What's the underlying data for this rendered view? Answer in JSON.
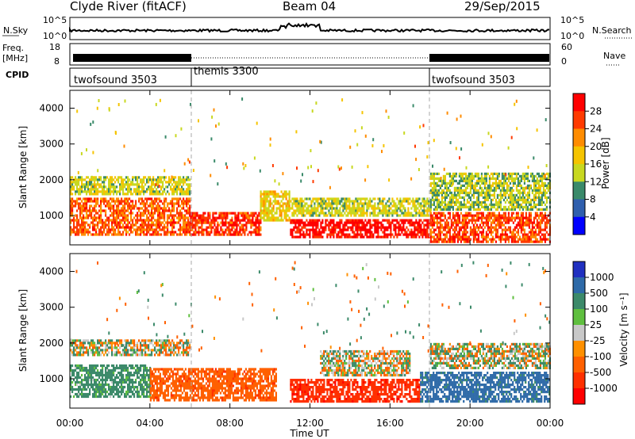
{
  "header": {
    "station": "Clyde River (fitACF)",
    "beam": "Beam 04",
    "date": "29/Sep/2015"
  },
  "noise_panel": {
    "left_label": "N.Sky",
    "right_label": "N.Search",
    "left_ticks": [
      "10^5",
      "10^0"
    ],
    "right_ticks": [
      "10^5",
      "10^0"
    ]
  },
  "freq_panel": {
    "left_label_1": "Freq.",
    "left_label_2": "[MHz]",
    "right_label": "Nave",
    "left_ticks": [
      "18",
      "8"
    ],
    "right_ticks": [
      "60",
      "0"
    ]
  },
  "cpid_panel": {
    "label": "CPID",
    "segments": [
      {
        "name": "twofsound 3503",
        "start_hour": 0,
        "end_hour": 6
      },
      {
        "name": "themis 3300",
        "start_hour": 6,
        "end_hour": 18
      },
      {
        "name": "twofsound 3503",
        "start_hour": 18,
        "end_hour": 24
      }
    ]
  },
  "x_axis": {
    "label": "Time UT",
    "ticks": [
      "00:00",
      "04:00",
      "08:00",
      "12:00",
      "16:00",
      "20:00",
      "00:00"
    ],
    "range_hours": [
      0,
      24
    ]
  },
  "power_panel": {
    "ylabel": "Slant Range [km]",
    "yticks": [
      "1000",
      "2000",
      "3000",
      "4000"
    ],
    "colorbar_label": "Power [dB]",
    "colorbar_ticks": [
      "28",
      "24",
      "20",
      "16",
      "12",
      "8",
      "4"
    ]
  },
  "velocity_panel": {
    "ylabel": "Slant Range [km]",
    "yticks": [
      "1000",
      "2000",
      "3000",
      "4000"
    ],
    "colorbar_label": "Velocity [m s⁻¹]",
    "colorbar_ticks": [
      "1000",
      "500",
      "100",
      "25",
      "-25",
      "-100",
      "-500",
      "-1000"
    ]
  },
  "chart_data": [
    {
      "type": "heatmap",
      "title": "Power",
      "xlabel": "Time UT",
      "ylabel": "Slant Range [km]",
      "xlim_hours": [
        0,
        24
      ],
      "ylim_km": [
        180,
        4500
      ],
      "colorbar_range_db": [
        0,
        30
      ],
      "colors": [
        "#0000ff",
        "#2f5fae",
        "#3a8a6a",
        "#5fbf3f",
        "#c8d820",
        "#f5c400",
        "#ff8c00",
        "#ff3000",
        "#ff0000"
      ],
      "regions": [
        {
          "t_start": 0,
          "t_end": 6,
          "r_min": 500,
          "r_max": 1500,
          "power_db": 24
        },
        {
          "t_start": 0,
          "t_end": 6,
          "r_min": 1600,
          "r_max": 2100,
          "power_db": 14
        },
        {
          "t_start": 6,
          "t_end": 9.5,
          "r_min": 500,
          "r_max": 1100,
          "power_db": 27
        },
        {
          "t_start": 9.5,
          "t_end": 11,
          "r_min": 900,
          "r_max": 1700,
          "power_db": 16
        },
        {
          "t_start": 11,
          "t_end": 18,
          "r_min": 400,
          "r_max": 900,
          "power_db": 30
        },
        {
          "t_start": 11,
          "t_end": 18,
          "r_min": 1000,
          "r_max": 1500,
          "power_db": 14
        },
        {
          "t_start": 18,
          "t_end": 24,
          "r_min": 300,
          "r_max": 1100,
          "power_db": 26
        },
        {
          "t_start": 18,
          "t_end": 24,
          "r_min": 1200,
          "r_max": 2200,
          "power_db": 12
        }
      ]
    },
    {
      "type": "heatmap",
      "title": "Velocity",
      "xlabel": "Time UT",
      "ylabel": "Slant Range [km]",
      "xlim_hours": [
        0,
        24
      ],
      "ylim_km": [
        180,
        4500
      ],
      "colorbar_range_ms": [
        -1000,
        1000
      ],
      "regions": [
        {
          "t_start": 0,
          "t_end": 4,
          "r_min": 500,
          "r_max": 1400,
          "velocity_ms": 150
        },
        {
          "t_start": 0,
          "t_end": 6,
          "r_min": 1700,
          "r_max": 2100,
          "velocity_ms": 0
        },
        {
          "t_start": 4,
          "t_end": 10.3,
          "r_min": 400,
          "r_max": 1300,
          "velocity_ms": -200
        },
        {
          "t_start": 11,
          "t_end": 17.5,
          "r_min": 400,
          "r_max": 1000,
          "velocity_ms": -600
        },
        {
          "t_start": 12.5,
          "t_end": 17,
          "r_min": 1100,
          "r_max": 1800,
          "velocity_ms": 0
        },
        {
          "t_start": 17.5,
          "t_end": 24,
          "r_min": 400,
          "r_max": 1200,
          "velocity_ms": 400
        },
        {
          "t_start": 18,
          "t_end": 24,
          "r_min": 1300,
          "r_max": 2000,
          "velocity_ms": 20
        }
      ]
    }
  ]
}
